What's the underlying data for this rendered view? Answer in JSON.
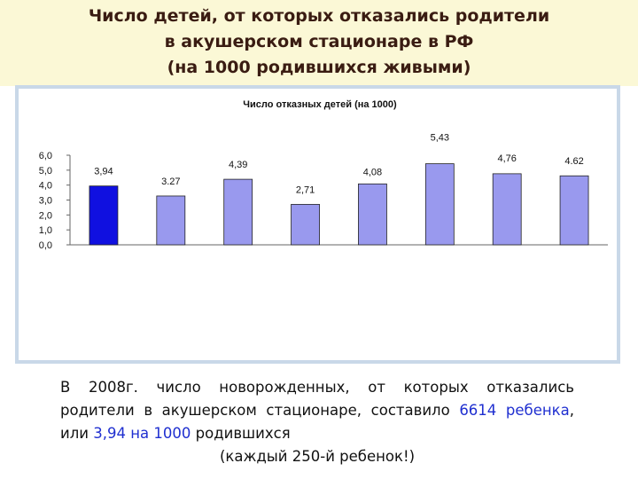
{
  "slide": {
    "title_lines": [
      "Число детей, от которых отказались родители",
      "в акушерском стационаре в РФ",
      "(на 1000 родившихся живыми)"
    ],
    "body": {
      "line1": "В 2008г. число новорожденных, от которых отказались",
      "line2_a": "родители в акушерском стационаре, составило ",
      "line2_hl": "6614 ребенка",
      "line2_b": ",",
      "line3_a": "или ",
      "line3_hl": "3,94 на 1000",
      "line3_b": " родившихся",
      "line4": "(каждый 250-й ребенок!)"
    }
  },
  "colors": {
    "header_bg": "#fbf8d6",
    "title_text": "#3a1c12",
    "frame": "#c9d8e8",
    "bar_first": "#1010e0",
    "bar": "#9999ee",
    "highlight_text": "#1f2fd0"
  },
  "chart_data": {
    "type": "bar",
    "title": "Число отказных детей (на 1000)",
    "categories": [
      "",
      "",
      "",
      "",
      "",
      "",
      "",
      ""
    ],
    "values": [
      3.94,
      3.27,
      4.39,
      2.71,
      4.08,
      5.43,
      4.76,
      4.62
    ],
    "data_labels": [
      "3,94",
      "3.27",
      "4,39",
      "2,71",
      "4,08",
      "5,43",
      "4,76",
      "4.62"
    ],
    "highlight_index": 0,
    "ylim": [
      0,
      6
    ],
    "y_ticks": [
      "0,0",
      "1,0",
      "2,0",
      "3,0",
      "4,0",
      "5,0",
      "6,0"
    ],
    "xlabel": "",
    "ylabel": "",
    "grid": false,
    "legend": "none"
  }
}
